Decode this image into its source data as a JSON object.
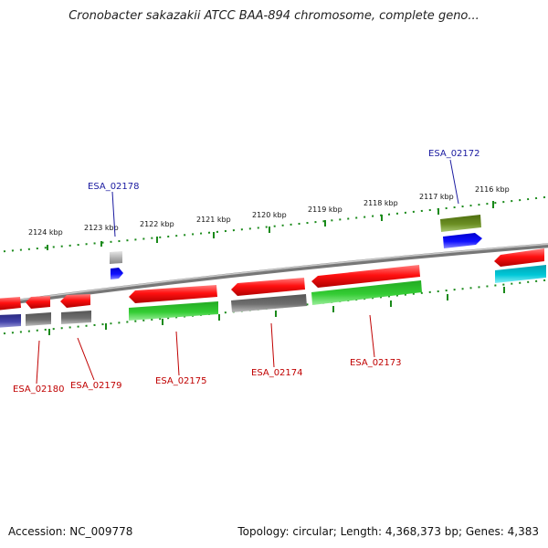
{
  "title": "Cronobacter sakazakii ATCC BAA-894 chromosome, complete geno...",
  "footer": {
    "accession": "Accession: NC_009778",
    "summary": "Topology: circular; Length: 4,368,373 bp; Genes: 4,383"
  },
  "kbp_labels": [
    "2124 kbp",
    "2123 kbp",
    "2122 kbp",
    "2121 kbp",
    "2120 kbp",
    "2119 kbp",
    "2118 kbp",
    "2117 kbp",
    "2116 kbp"
  ],
  "gene_labels": {
    "esa_02178": "ESA_02178",
    "esa_02172": "ESA_02172",
    "esa_02180": "ESA_02180",
    "esa_02179": "ESA_02179",
    "esa_02175": "ESA_02175",
    "esa_02174": "ESA_02174",
    "esa_02173": "ESA_02173"
  },
  "colors": {
    "backbone": "#8a8a8a",
    "tick": "#1a8a1a",
    "red": "#e00000",
    "green": "#33bb33",
    "gray": "#666666",
    "blue": "#0000ee",
    "olive": "#6b8e23",
    "cyan": "#00b8c8",
    "navy": "#3a3a9a",
    "label_red": "#c00000",
    "label_blue": "#1a1aa0"
  }
}
